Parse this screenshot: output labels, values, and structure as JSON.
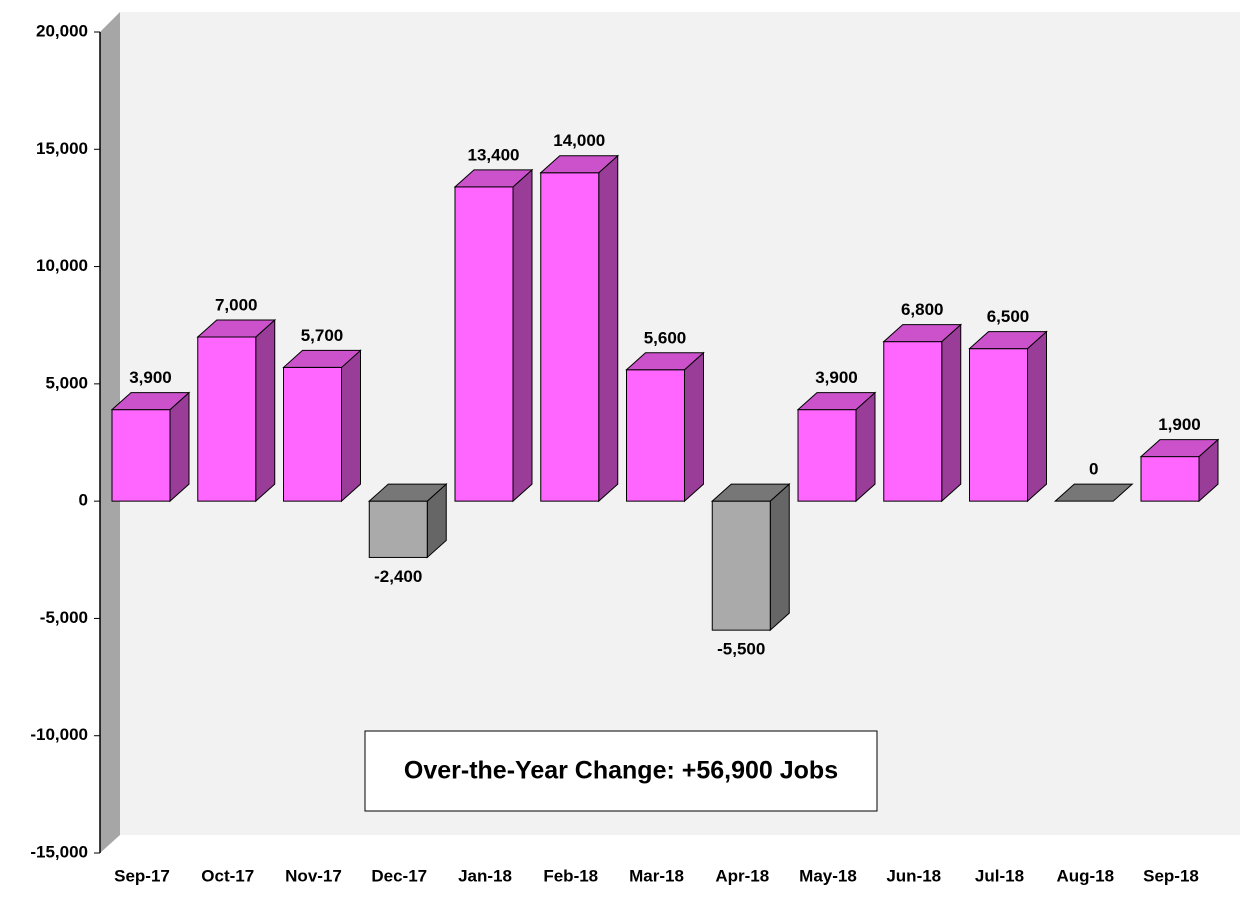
{
  "chart_data": {
    "type": "bar",
    "categories": [
      "Sep-17",
      "Oct-17",
      "Nov-17",
      "Dec-17",
      "Jan-18",
      "Feb-18",
      "Mar-18",
      "Apr-18",
      "May-18",
      "Jun-18",
      "Jul-18",
      "Aug-18",
      "Sep-18"
    ],
    "values": [
      3900,
      7000,
      5700,
      -2400,
      13400,
      14000,
      5600,
      -5500,
      3900,
      6800,
      6500,
      0,
      1900
    ],
    "value_labels": [
      "3,900",
      "7,000",
      "5,700",
      "-2,400",
      "13,400",
      "14,000",
      "5,600",
      "-5,500",
      "3,900",
      "6,800",
      "6,500",
      "0",
      "1,900"
    ],
    "color": "#ff66ff",
    "negative_color": "#aaaaaa",
    "ylim": [
      -15000,
      20000
    ],
    "yticks": [
      {
        "value": -15000,
        "label": "-15,000"
      },
      {
        "value": -10000,
        "label": "-10,000"
      },
      {
        "value": -5000,
        "label": "-5,000"
      },
      0,
      {
        "value": 5000,
        "label": "5,000"
      },
      {
        "value": 10000,
        "label": "10,000"
      },
      {
        "value": 15000,
        "label": "15,000"
      },
      {
        "value": 20000,
        "label": "20,000"
      }
    ],
    "annotation": "Over-the-Year Change: +56,900 Jobs"
  }
}
